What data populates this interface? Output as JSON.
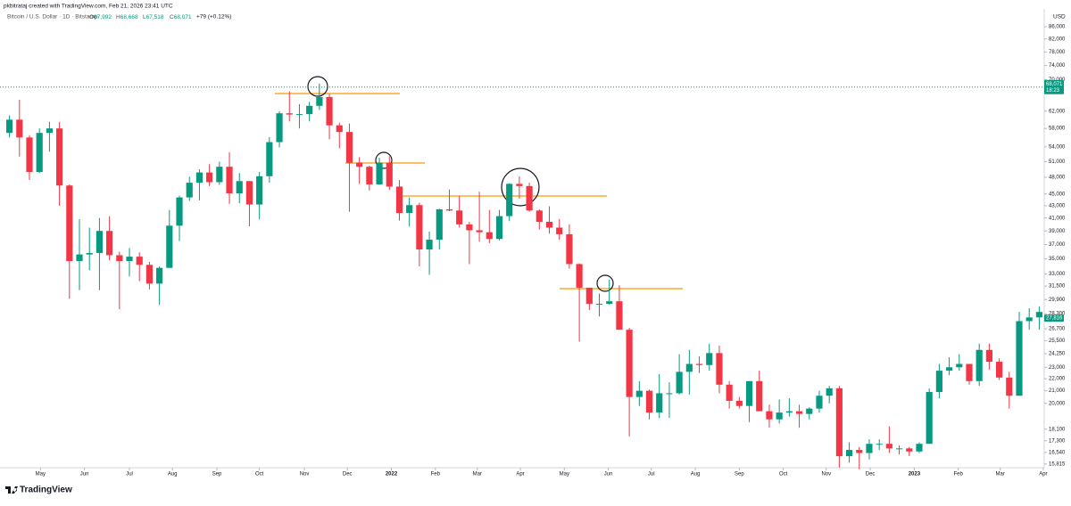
{
  "chart_data": {
    "type": "candlestick",
    "watermark": "pkbitrataj created with TradingView.com, Feb 21, 2026 23:41 UTC",
    "title": "Bitcoin / U.S. Dollar · 1D · Bitstamp",
    "ohlc_legend": [
      {
        "name": "O",
        "value": 67992,
        "label": "67,992"
      },
      {
        "name": "H",
        "value": 68668,
        "label": "68,668"
      },
      {
        "name": "L",
        "value": 67518,
        "label": "67,518"
      },
      {
        "name": "C",
        "value": 68071,
        "label": "68,071"
      }
    ],
    "change": "+79 (+0.12%)",
    "currency": "USD",
    "brand": "TradingView",
    "log_scale": true,
    "up_color": "#089981",
    "down_color": "#f23645",
    "last_price": {
      "value": 68071,
      "label": "68,071",
      "countdown": "18:23"
    },
    "second_price": {
      "value": 27816,
      "label": "27,816"
    },
    "ylim": [
      15590,
      91500
    ],
    "yticks": [
      {
        "value": 86000,
        "label": "86,000"
      },
      {
        "value": 82000,
        "label": "82,000"
      },
      {
        "value": 78000,
        "label": "78,000"
      },
      {
        "value": 74000,
        "label": "74,000"
      },
      {
        "value": 70000,
        "label": "70,000"
      },
      {
        "value": 62000,
        "label": "62,000"
      },
      {
        "value": 58000,
        "label": "58,000"
      },
      {
        "value": 54000,
        "label": "54,000"
      },
      {
        "value": 51000,
        "label": "51,000"
      },
      {
        "value": 48000,
        "label": "48,000"
      },
      {
        "value": 45000,
        "label": "45,000"
      },
      {
        "value": 43000,
        "label": "43,000"
      },
      {
        "value": 41000,
        "label": "41,000"
      },
      {
        "value": 39000,
        "label": "39,000"
      },
      {
        "value": 37000,
        "label": "37,000"
      },
      {
        "value": 35000,
        "label": "35,000"
      },
      {
        "value": 33000,
        "label": "33,000"
      },
      {
        "value": 31500,
        "label": "31,500"
      },
      {
        "value": 29900,
        "label": "29,900"
      },
      {
        "value": 28300,
        "label": "28,300"
      },
      {
        "value": 26700,
        "label": "26,700"
      },
      {
        "value": 25500,
        "label": "25,500"
      },
      {
        "value": 24250,
        "label": "24,250"
      },
      {
        "value": 23000,
        "label": "23,000"
      },
      {
        "value": 22000,
        "label": "22,000"
      },
      {
        "value": 21000,
        "label": "21,000"
      },
      {
        "value": 20000,
        "label": "20,000"
      },
      {
        "value": 18100,
        "label": "18,100"
      },
      {
        "value": 17300,
        "label": "17,300"
      },
      {
        "value": 16540,
        "label": "16,540"
      },
      {
        "value": 15815,
        "label": "15,815"
      }
    ],
    "xlim": [
      0,
      104
    ],
    "xticks": [
      {
        "value": 3.6,
        "label": "May"
      },
      {
        "value": 8.0,
        "label": "Jun"
      },
      {
        "value": 12.5,
        "label": "Jul"
      },
      {
        "value": 16.8,
        "label": "Aug"
      },
      {
        "value": 21.25,
        "label": "Sep"
      },
      {
        "value": 25.5,
        "label": "Oct"
      },
      {
        "value": 30.0,
        "label": "Nov"
      },
      {
        "value": 34.3,
        "label": "Dec"
      },
      {
        "value": 38.7,
        "label": "2022"
      },
      {
        "value": 43.1,
        "label": "Feb"
      },
      {
        "value": 47.3,
        "label": "Mar"
      },
      {
        "value": 51.6,
        "label": "Apr"
      },
      {
        "value": 56.0,
        "label": "May"
      },
      {
        "value": 60.4,
        "label": "Jun"
      },
      {
        "value": 64.7,
        "label": "Jul"
      },
      {
        "value": 69.1,
        "label": "Aug"
      },
      {
        "value": 73.5,
        "label": "Sep"
      },
      {
        "value": 77.9,
        "label": "Oct"
      },
      {
        "value": 82.2,
        "label": "Nov"
      },
      {
        "value": 86.6,
        "label": "Dec"
      },
      {
        "value": 91.0,
        "label": "2023"
      },
      {
        "value": 95.4,
        "label": "Feb"
      },
      {
        "value": 99.6,
        "label": "Mar"
      },
      {
        "value": 103.9,
        "label": "Apr"
      }
    ],
    "open": [
      57000,
      60000,
      56000,
      49000,
      57000,
      58000,
      46500,
      34700,
      35600,
      35800,
      39000,
      35500,
      34700,
      35300,
      34200,
      31800,
      33800,
      39800,
      44400,
      47000,
      48900,
      47100,
      50000,
      45100,
      47300,
      43200,
      48200,
      55000,
      61500,
      61200,
      61300,
      63300,
      65500,
      58700,
      57200,
      50800,
      50000,
      46700,
      50800,
      46300,
      41800,
      43100,
      36300,
      37700,
      42400,
      42200,
      40000,
      39100,
      38800,
      37800,
      41300,
      46800,
      46400,
      42200,
      40400,
      39500,
      38500,
      34300,
      31300,
      29400,
      29400,
      29700,
      26600,
      20500,
      21000,
      19300,
      20800,
      20800,
      22600,
      23300,
      23200,
      24300,
      21500,
      20200,
      19800,
      21800,
      19400,
      18800,
      19300,
      19400,
      19200,
      19600,
      20600,
      21200,
      16300,
      16700,
      16500,
      17100,
      17100,
      16800,
      16800,
      16600,
      17100,
      20900,
      22700,
      23000,
      23300,
      21800,
      24600,
      23500,
      22100,
      20600,
      27500,
      27900
    ],
    "high": [
      61000,
      64800,
      56500,
      58000,
      59500,
      59500,
      46700,
      40800,
      39500,
      41000,
      41300,
      36000,
      36500,
      35900,
      34600,
      34000,
      42300,
      44700,
      48100,
      49500,
      50500,
      51000,
      52900,
      48800,
      47300,
      49000,
      56100,
      62000,
      67000,
      63700,
      64300,
      69000,
      66300,
      59300,
      59100,
      51900,
      50200,
      51800,
      52100,
      47500,
      44400,
      43500,
      38900,
      42500,
      45800,
      44700,
      40400,
      45400,
      42300,
      42300,
      46900,
      48200,
      47000,
      42400,
      42900,
      40800,
      40000,
      34400,
      31300,
      30600,
      32300,
      31600,
      26800,
      21800,
      21100,
      22400,
      21700,
      24200,
      24600,
      24000,
      25200,
      25000,
      21800,
      20500,
      21800,
      22700,
      19900,
      20300,
      20400,
      19900,
      19700,
      21000,
      21400,
      21400,
      17200,
      16900,
      17400,
      17400,
      18300,
      17000,
      16900,
      17200,
      21200,
      23300,
      23900,
      24200,
      23300,
      25200,
      25200,
      23800,
      22600,
      28500,
      28900,
      29100
    ],
    "low": [
      56000,
      52000,
      47500,
      48800,
      53000,
      43000,
      30000,
      31000,
      33500,
      31000,
      34800,
      28800,
      32700,
      32100,
      31100,
      29300,
      33800,
      37500,
      43800,
      43900,
      46400,
      46600,
      43300,
      43400,
      39700,
      40800,
      47000,
      53900,
      59600,
      58000,
      59600,
      62300,
      55600,
      53700,
      42000,
      46800,
      45600,
      46600,
      45700,
      40600,
      39700,
      34000,
      32900,
      36300,
      42100,
      39500,
      34300,
      37400,
      37200,
      37600,
      40500,
      44200,
      42000,
      39200,
      38600,
      37700,
      33700,
      25400,
      28700,
      28000,
      29300,
      26600,
      17600,
      19800,
      18800,
      18900,
      18900,
      20700,
      20700,
      22500,
      22700,
      20800,
      19600,
      19600,
      18600,
      19400,
      18200,
      18500,
      19000,
      18200,
      18800,
      19300,
      20000,
      15600,
      15900,
      15500,
      16100,
      16700,
      16500,
      16400,
      16300,
      16500,
      17100,
      20400,
      22300,
      22700,
      21500,
      21400,
      22800,
      21900,
      19600,
      20600,
      26600,
      26600
    ],
    "close": [
      60000,
      56000,
      49000,
      57000,
      58000,
      46500,
      34700,
      35600,
      35800,
      39000,
      35500,
      34700,
      35300,
      34200,
      31800,
      33800,
      39800,
      44400,
      47000,
      48900,
      47100,
      50000,
      45100,
      47300,
      43200,
      48200,
      55000,
      61500,
      61200,
      61300,
      63300,
      65500,
      58700,
      57200,
      50800,
      50000,
      46700,
      50800,
      46300,
      41800,
      43100,
      36300,
      37700,
      42400,
      42200,
      40000,
      39100,
      38800,
      37800,
      41300,
      46800,
      46400,
      42200,
      40400,
      39500,
      38500,
      34300,
      31300,
      29400,
      29400,
      29700,
      26600,
      20500,
      21000,
      19300,
      20800,
      20800,
      22600,
      23300,
      23200,
      24300,
      21500,
      20200,
      19800,
      21800,
      19400,
      18800,
      19300,
      19400,
      19200,
      19600,
      20600,
      21200,
      16300,
      16700,
      16500,
      17100,
      17100,
      16800,
      16800,
      16600,
      17100,
      20900,
      22700,
      23000,
      23300,
      21800,
      24600,
      23500,
      22100,
      20600,
      27500,
      27900,
      28500
    ]
  }
}
